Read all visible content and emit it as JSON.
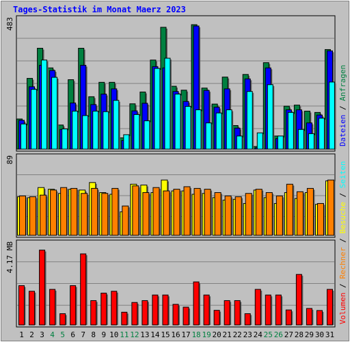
{
  "chart_data": {
    "type": "bar",
    "title": "Tages-Statistik im Monat Maerz 2023",
    "categories": [
      "1",
      "2",
      "3",
      "4",
      "5",
      "6",
      "7",
      "8",
      "9",
      "10",
      "11",
      "12",
      "13",
      "14",
      "15",
      "16",
      "17",
      "18",
      "19",
      "20",
      "21",
      "22",
      "23",
      "24",
      "25",
      "26",
      "27",
      "28",
      "29",
      "30",
      "31"
    ],
    "weekend_days": [
      "4",
      "5",
      "11",
      "12",
      "18",
      "19",
      "25",
      "26"
    ],
    "colors": {
      "background": "#c0c0c0",
      "plot_border": "#000000",
      "grid": "#808080",
      "title": "#0000ff",
      "day_label": "#000000",
      "weekend_label": "#008040",
      "anfragen": "#008040",
      "dateien": "#0000ff",
      "seiten": "#00ffff",
      "besuche": "#ffff00",
      "rechner": "#ff8000",
      "volumen": "#ff0000"
    },
    "panels": [
      {
        "id": "top",
        "max_label": "483",
        "ylim": [
          0,
          483
        ],
        "series": [
          {
            "name": "Anfragen",
            "color": "#008040",
            "values": [
              115,
              270,
              385,
              310,
              92,
              265,
              385,
              200,
              255,
              255,
              43,
              173,
              218,
              340,
              465,
              240,
              225,
              475,
              233,
              172,
              275,
              90,
              285,
              10,
              330,
              50,
              164,
              168,
              145,
              140,
              380
            ]
          },
          {
            "name": "Dateien",
            "color": "#0000ff",
            "values": [
              110,
              238,
              320,
              300,
              75,
              176,
              320,
              170,
              210,
              230,
              33,
              146,
              175,
              315,
              310,
              220,
              182,
              470,
              224,
              160,
              230,
              80,
              268,
              5,
              310,
              40,
              150,
              150,
              100,
              130,
              375
            ]
          },
          {
            "name": "Seiten",
            "color": "#00ffff",
            "values": [
              96,
              228,
              340,
              274,
              77,
              145,
              128,
              145,
              143,
              186,
              55,
              132,
              108,
              308,
              347,
              210,
              163,
              150,
              100,
              138,
              150,
              50,
              220,
              62,
              246,
              50,
              140,
              75,
              59,
              118,
              256
            ]
          }
        ]
      },
      {
        "id": "middle",
        "max_label": "89",
        "ylim": [
          0,
          89
        ],
        "series": [
          {
            "name": "Besuche",
            "color": "#ffff00",
            "values": [
              46,
              45,
              57,
              55,
              50,
              55,
              54,
              63,
              51,
              49,
              28,
              61,
              60,
              51,
              66,
              53,
              53,
              49,
              50,
              45,
              42,
              43,
              38,
              54,
              45,
              38,
              51,
              44,
              51,
              37,
              65
            ]
          },
          {
            "name": "Rechner",
            "color": "#ff8000",
            "values": [
              47,
              46,
              48,
              54,
              57,
              56,
              50,
              56,
              50,
              56,
              35,
              59,
              51,
              57,
              53,
              55,
              58,
              56,
              55,
              51,
              47,
              46,
              50,
              55,
              51,
              47,
              61,
              52,
              56,
              38,
              66
            ]
          }
        ]
      },
      {
        "id": "bottom",
        "max_label": "4.17 MB",
        "ylim": [
          0,
          4.17
        ],
        "series": [
          {
            "name": "Volumen",
            "color": "#ff0000",
            "values": [
              2.1,
              1.8,
              4.0,
              1.9,
              0.6,
              2.1,
              3.8,
              1.3,
              1.7,
              1.8,
              0.68,
              1.2,
              1.3,
              1.6,
              1.6,
              1.1,
              0.95,
              2.3,
              1.6,
              0.78,
              1.3,
              1.3,
              0.6,
              1.9,
              1.6,
              1.6,
              0.8,
              2.7,
              0.88,
              0.77,
              1.9
            ]
          }
        ]
      }
    ],
    "side_legend_top": [
      "Dateien",
      "/",
      "Anfragen"
    ],
    "side_legend_bottom": [
      "Volumen",
      "/",
      "Rechner",
      "/",
      "Besuche",
      "/",
      "Seiten"
    ]
  }
}
